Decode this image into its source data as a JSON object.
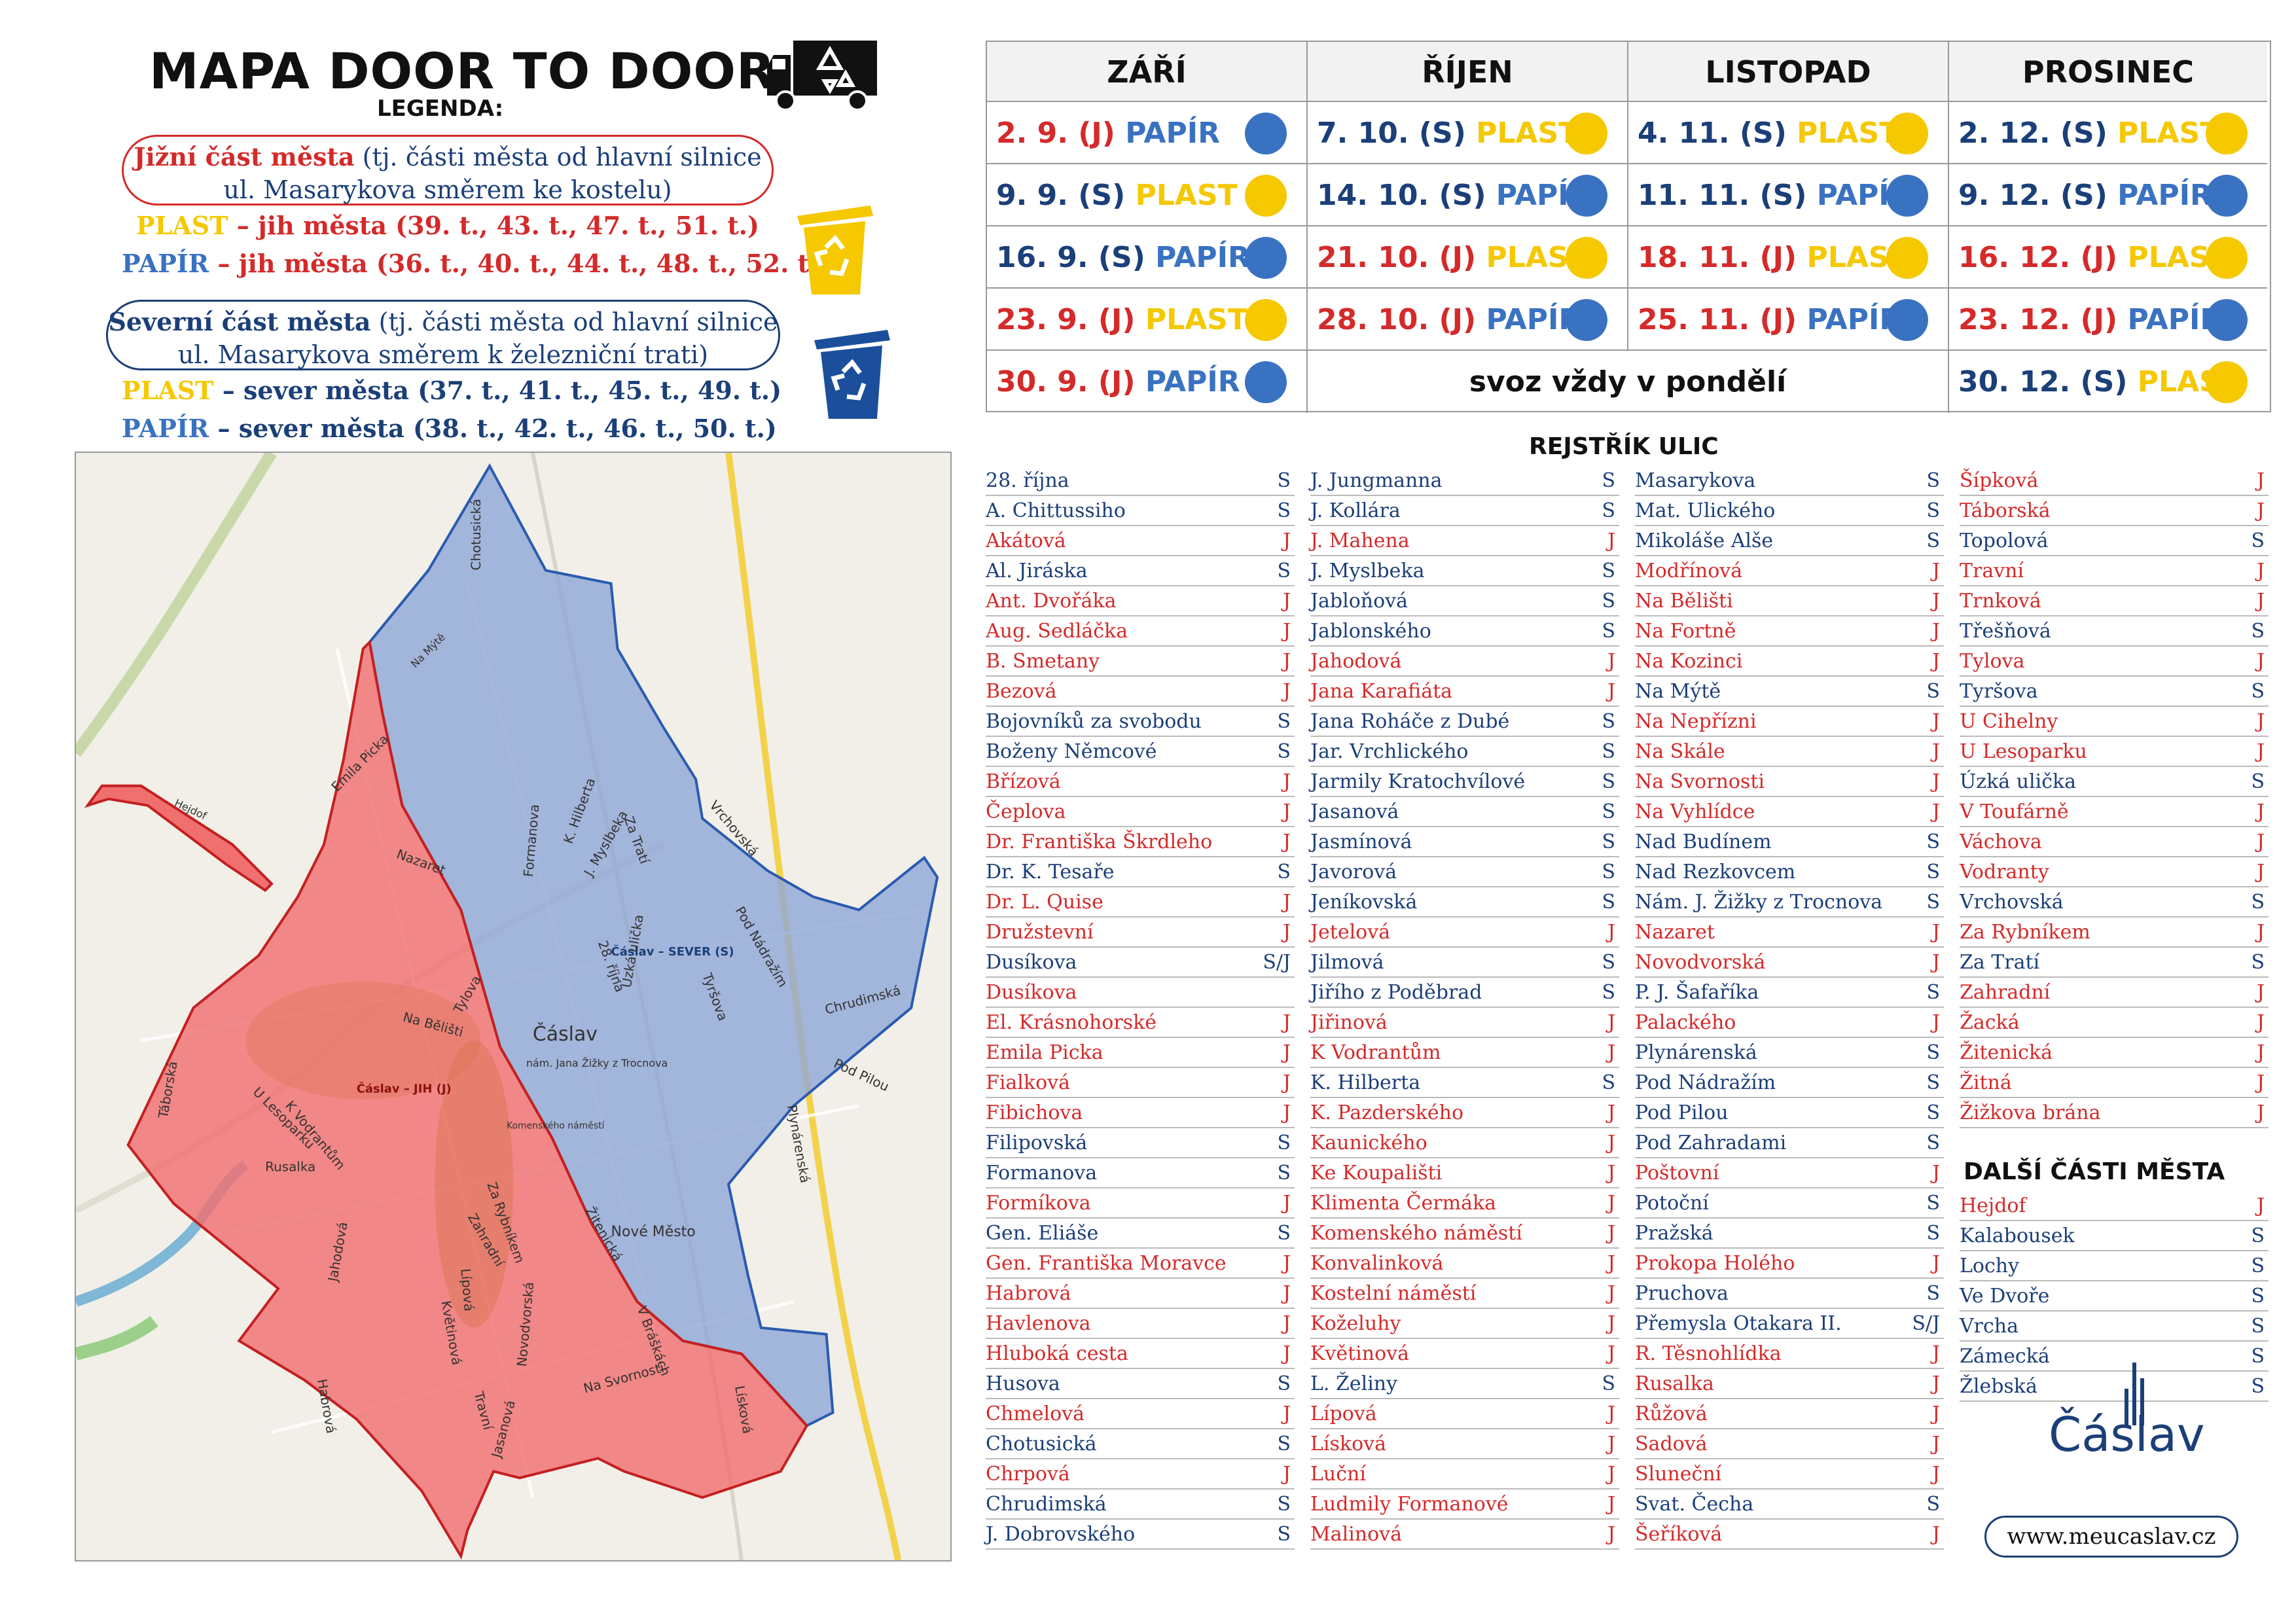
{
  "header": {
    "title": "MAPA DOOR TO DOOR",
    "legend_title": "LEGENDA:"
  },
  "legend": {
    "south_box": {
      "bold": "Jižní část města",
      "rest": " (tj. části města od hlavní silnice",
      "line2": "ul. Masarykova směrem ke kostelu)"
    },
    "south_plast": {
      "type": "PLAST",
      "text": " – jih města (39. t., 43. t., 47. t., 51. t.)"
    },
    "south_papir": {
      "type": "PAPÍR",
      "text": " – jih města (36. t., 40. t., 44. t., 48. t., 52. t.)"
    },
    "north_box": {
      "bold": "Severní část města",
      "rest": " (tj. části města od hlavní silnice",
      "line2": "ul. Masarykova směrem k železniční trati)"
    },
    "north_plast": {
      "type": "PLAST",
      "text": " – sever města (37. t., 41. t., 45. t., 49. t.)"
    },
    "north_papir": {
      "type": "PAPÍR",
      "text": " – sever města (38. t., 42. t., 46. t., 50. t.)"
    }
  },
  "colors": {
    "south": "#d42a2a",
    "north": "#1b3f78",
    "plast": "#f5c800",
    "papir": "#3a72c2",
    "map_south": "#f07070",
    "map_north": "#8fa6d6"
  },
  "schedule": {
    "months": [
      "ZÁŘÍ",
      "ŘÍJEN",
      "LISTOPAD",
      "PROSINEC"
    ],
    "note": "svoz vždy v pondělí",
    "columns": [
      [
        {
          "date": "2. 9. (J)",
          "waste": "PAPÍR",
          "z": "J",
          "w": "papir"
        },
        {
          "date": "9. 9. (S)",
          "waste": "PLAST",
          "z": "S",
          "w": "plast"
        },
        {
          "date": "16. 9. (S)",
          "waste": "PAPÍR",
          "z": "S",
          "w": "papir"
        },
        {
          "date": "23. 9. (J)",
          "waste": "PLAST",
          "z": "J",
          "w": "plast"
        },
        {
          "date": "30. 9. (J)",
          "waste": "PAPÍR",
          "z": "J",
          "w": "papir"
        }
      ],
      [
        {
          "date": "7. 10. (S)",
          "waste": "PLAST",
          "z": "S",
          "w": "plast"
        },
        {
          "date": "14. 10. (S)",
          "waste": "PAPÍR",
          "z": "S",
          "w": "papir"
        },
        {
          "date": "21. 10. (J)",
          "waste": "PLAST",
          "z": "J",
          "w": "plast"
        },
        {
          "date": "28. 10. (J)",
          "waste": "PAPÍR",
          "z": "J",
          "w": "papir"
        }
      ],
      [
        {
          "date": "4. 11. (S)",
          "waste": "PLAST",
          "z": "S",
          "w": "plast"
        },
        {
          "date": "11. 11. (S)",
          "waste": "PAPÍR",
          "z": "S",
          "w": "papir"
        },
        {
          "date": "18. 11. (J)",
          "waste": "PLAST",
          "z": "J",
          "w": "plast"
        },
        {
          "date": "25. 11. (J)",
          "waste": "PAPÍR",
          "z": "J",
          "w": "papir"
        }
      ],
      [
        {
          "date": "2. 12. (S)",
          "waste": "PLAST",
          "z": "S",
          "w": "plast"
        },
        {
          "date": "9. 12. (S)",
          "waste": "PAPÍR",
          "z": "S",
          "w": "papir"
        },
        {
          "date": "16. 12. (J)",
          "waste": "PLAST",
          "z": "J",
          "w": "plast"
        },
        {
          "date": "23. 12. (J)",
          "waste": "PAPÍR",
          "z": "J",
          "w": "papir"
        },
        {
          "date": "30. 12. (S)",
          "waste": "PLAST",
          "z": "S",
          "w": "plast"
        }
      ]
    ]
  },
  "register": {
    "title": "REJSTŘÍK ULIC",
    "columns": [
      [
        [
          "28. října",
          "S"
        ],
        [
          "A. Chittussiho",
          "S"
        ],
        [
          "Akátová",
          "J"
        ],
        [
          "Al. Jiráska",
          "S"
        ],
        [
          "Ant. Dvořáka",
          "J"
        ],
        [
          "Aug. Sedláčka",
          "J"
        ],
        [
          "B. Smetany",
          "J"
        ],
        [
          "Bezová",
          "J"
        ],
        [
          "Bojovníků za svobodu",
          "S"
        ],
        [
          "Boženy Němcové",
          "S"
        ],
        [
          "Břízová",
          "J"
        ],
        [
          "Čeplova",
          "J"
        ],
        [
          "Dr. Františka Škrdleho",
          "J"
        ],
        [
          "Dr. K. Tesaře",
          "S"
        ],
        [
          "Dr. L. Quise",
          "J"
        ],
        [
          "Družstevní",
          "J"
        ],
        [
          "Dusíkova",
          "S/J"
        ],
        [
          "Dusíkova",
          ""
        ],
        [
          "El. Krásnohorské",
          "J"
        ],
        [
          "Emila Picka",
          "J"
        ],
        [
          "Fialková",
          "J"
        ],
        [
          "Fibichova",
          "J"
        ],
        [
          "Filipovská",
          "S"
        ],
        [
          "Formanova",
          "S"
        ],
        [
          "Formíkova",
          "J"
        ],
        [
          "Gen. Eliáše",
          "S"
        ],
        [
          "Gen. Františka Moravce",
          "J"
        ],
        [
          "Habrová",
          "J"
        ],
        [
          "Havlenova",
          "J"
        ],
        [
          "Hluboká cesta",
          "J"
        ],
        [
          "Husova",
          "S"
        ],
        [
          "Chmelová",
          "J"
        ],
        [
          "Chotusická",
          "S"
        ],
        [
          "Chrpová",
          "J"
        ],
        [
          "Chrudimská",
          "S"
        ],
        [
          "J. Dobrovského",
          "S"
        ]
      ],
      [
        [
          "J. Jungmanna",
          "S"
        ],
        [
          "J. Kollára",
          "S"
        ],
        [
          "J. Mahena",
          "J"
        ],
        [
          "J. Myslbeka",
          "S"
        ],
        [
          "Jabloňová",
          "S"
        ],
        [
          "Jablonského",
          "S"
        ],
        [
          "Jahodová",
          "J"
        ],
        [
          "Jana Karafiáta",
          "J"
        ],
        [
          "Jana Roháče z Dubé",
          "S"
        ],
        [
          "Jar. Vrchlického",
          "S"
        ],
        [
          "Jarmily Kratochvílové",
          "S"
        ],
        [
          "Jasanová",
          "S"
        ],
        [
          "Jasmínová",
          "S"
        ],
        [
          "Javorová",
          "S"
        ],
        [
          "Jeníkovská",
          "S"
        ],
        [
          "Jetelová",
          "J"
        ],
        [
          "Jilmová",
          "S"
        ],
        [
          "Jiřího z Poděbrad",
          "S"
        ],
        [
          "Jiřinová",
          "J"
        ],
        [
          "K Vodrantům",
          "J"
        ],
        [
          "K. Hilberta",
          "S"
        ],
        [
          "K. Pazderského",
          "J"
        ],
        [
          "Kaunického",
          "J"
        ],
        [
          "Ke Koupališti",
          "J"
        ],
        [
          "Klimenta Čermáka",
          "J"
        ],
        [
          "Komenského náměstí",
          "J"
        ],
        [
          "Konvalinková",
          "J"
        ],
        [
          "Kostelní náměstí",
          "J"
        ],
        [
          "Koželuhy",
          "J"
        ],
        [
          "Květinová",
          "J"
        ],
        [
          "L. Želiny",
          "S"
        ],
        [
          "Lípová",
          "J"
        ],
        [
          "Lísková",
          "J"
        ],
        [
          "Luční",
          "J"
        ],
        [
          "Ludmily Formanové",
          "J"
        ],
        [
          "Malinová",
          "J"
        ]
      ],
      [
        [
          "Masarykova",
          "S"
        ],
        [
          "Mat. Ulického",
          "S"
        ],
        [
          "Mikoláše Alše",
          "S"
        ],
        [
          "Modřínová",
          "J"
        ],
        [
          "Na Bělišti",
          "J"
        ],
        [
          "Na Fortně",
          "J"
        ],
        [
          "Na Kozinci",
          "J"
        ],
        [
          "Na Mýtě",
          "S"
        ],
        [
          "Na Nepřízni",
          "J"
        ],
        [
          "Na Skále",
          "J"
        ],
        [
          "Na Svornosti",
          "J"
        ],
        [
          "Na Vyhlídce",
          "J"
        ],
        [
          "Nad Budínem",
          "S"
        ],
        [
          "Nad Rezkovcem",
          "S"
        ],
        [
          "Nám. J. Žižky z Trocnova",
          "S"
        ],
        [
          "Nazaret",
          "J"
        ],
        [
          "Novodvorská",
          "J"
        ],
        [
          "P. J. Šafaříka",
          "S"
        ],
        [
          "Palackého",
          "J"
        ],
        [
          "Plynárenská",
          "S"
        ],
        [
          "Pod Nádražím",
          "S"
        ],
        [
          "Pod Pilou",
          "S"
        ],
        [
          "Pod Zahradami",
          "S"
        ],
        [
          "Poštovní",
          "J"
        ],
        [
          "Potoční",
          "S"
        ],
        [
          "Pražská",
          "S"
        ],
        [
          "Prokopa Holého",
          "J"
        ],
        [
          "Pruchova",
          "S"
        ],
        [
          "Přemysla Otakara II.",
          "S/J"
        ],
        [
          "R. Těsnohlídka",
          "J"
        ],
        [
          "Rusalka",
          "J"
        ],
        [
          "Růžová",
          "J"
        ],
        [
          "Sadová",
          "J"
        ],
        [
          "Sluneční",
          "J"
        ],
        [
          "Svat. Čecha",
          "S"
        ],
        [
          "Šeříková",
          "J"
        ]
      ],
      [
        [
          "Šípková",
          "J"
        ],
        [
          "Táborská",
          "J"
        ],
        [
          "Topolová",
          "S"
        ],
        [
          "Travní",
          "J"
        ],
        [
          "Trnková",
          "J"
        ],
        [
          "Třešňová",
          "S"
        ],
        [
          "Tylova",
          "J"
        ],
        [
          "Tyršova",
          "S"
        ],
        [
          "U Cihelny",
          "J"
        ],
        [
          "U Lesoparku",
          "J"
        ],
        [
          "Úzká ulička",
          "S"
        ],
        [
          "V Toufárně",
          "J"
        ],
        [
          "Váchova",
          "J"
        ],
        [
          "Vodranty",
          "J"
        ],
        [
          "Vrchovská",
          "S"
        ],
        [
          "Za Rybníkem",
          "J"
        ],
        [
          "Za Tratí",
          "S"
        ],
        [
          "Zahradní",
          "J"
        ],
        [
          "Žacká",
          "J"
        ],
        [
          "Žitenická",
          "J"
        ],
        [
          "Žitná",
          "J"
        ],
        [
          "Žižkova brána",
          "J"
        ]
      ]
    ],
    "other_title": "DALŠÍ ČÁSTI MĚSTA",
    "other": [
      [
        "Hejdof",
        "J"
      ],
      [
        "Kalabousek",
        "S"
      ],
      [
        "Lochy",
        "S"
      ],
      [
        "Ve Dvoře",
        "S"
      ],
      [
        "Vrcha",
        "S"
      ],
      [
        "Zámecká",
        "S"
      ],
      [
        "Žlebská",
        "S"
      ]
    ]
  },
  "map": {
    "labels": [
      "Čáslav – SEVER (S)",
      "Čáslav – JIH (J)",
      "Čáslav",
      "nám. Jana Žižky z Trocnova",
      "Komenského náměstí",
      "Nové Město",
      "Emila Picka",
      "Nazaret",
      "Tylova",
      "Na Bělišti",
      "Chotusická",
      "Formanova",
      "K. Hilberta",
      "J. Myslbeka",
      "28. října",
      "Za Tratí",
      "Vrchovská",
      "Pod Nádražím",
      "Úzká ulička",
      "Tyršova",
      "Chrudimská",
      "Pod Pilou",
      "Plynárenská",
      "Táborská",
      "U Lesoparku",
      "K Vodrantům",
      "Rusalka",
      "Za Rybníkem",
      "Jahodová",
      "Zahradní",
      "Lípová",
      "Květinová",
      "Žitenická",
      "V Bráškách",
      "Habrová",
      "Novodvorská",
      "Travní",
      "Na Svornosti",
      "Jasanová",
      "Lísková",
      "Hejdof",
      "Na Mýtě"
    ]
  },
  "footer": {
    "logo": "Čáslav",
    "url": "www.meucaslav.cz"
  }
}
